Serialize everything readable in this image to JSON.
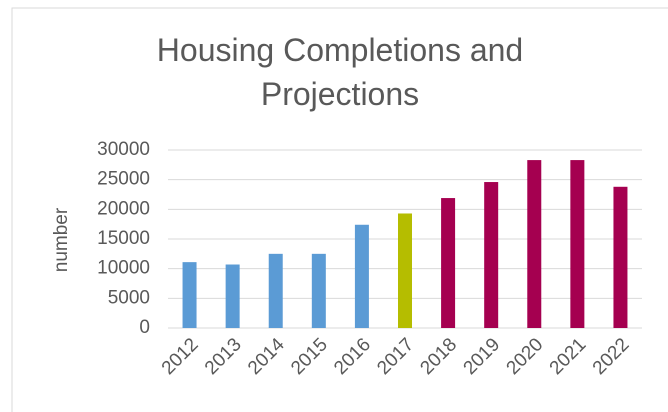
{
  "chart_data": {
    "type": "bar",
    "title": "Housing Completions and Projections",
    "y_label": "number",
    "categories": [
      "2012",
      "2013",
      "2014",
      "2015",
      "2016",
      "2017",
      "2018",
      "2019",
      "2020",
      "2021",
      "2022"
    ],
    "values": [
      11100,
      10700,
      12500,
      12500,
      17400,
      19300,
      21900,
      24600,
      28300,
      28300,
      23800
    ],
    "colors": [
      "#5b9bd5",
      "#5b9bd5",
      "#5b9bd5",
      "#5b9bd5",
      "#5b9bd5",
      "#b5bd00",
      "#a50050",
      "#a50050",
      "#a50050",
      "#a50050",
      "#a50050"
    ],
    "ylim": [
      0,
      30000
    ],
    "yticks": [
      0,
      5000,
      10000,
      15000,
      20000,
      25000,
      30000
    ],
    "grid": true
  }
}
